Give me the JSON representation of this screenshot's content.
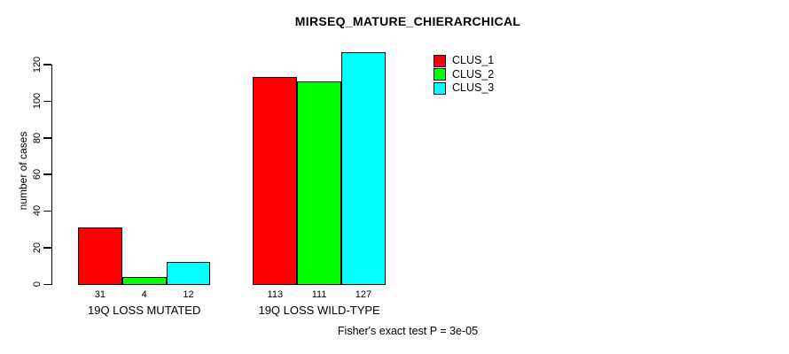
{
  "chart_data": {
    "type": "bar",
    "title": "MIRSEQ_MATURE_CHIERARCHICAL",
    "xlabel": "",
    "ylabel": "number of cases",
    "categories": [
      "19Q LOSS MUTATED",
      "19Q LOSS WILD-TYPE"
    ],
    "series": [
      {
        "name": "CLUS_1",
        "color": "#FF0000",
        "values": [
          31,
          113
        ]
      },
      {
        "name": "CLUS_2",
        "color": "#00FF00",
        "values": [
          4,
          111
        ]
      },
      {
        "name": "CLUS_3",
        "color": "#00FFFF",
        "values": [
          12,
          127
        ]
      }
    ],
    "yticks": [
      0,
      20,
      40,
      60,
      80,
      100,
      120
    ],
    "ylim": [
      0,
      120
    ],
    "bar_value_labels": true,
    "grid": false,
    "legend_position": "top-right",
    "annotation": "Fisher's exact test P = 3e-05"
  },
  "colors": {
    "background": "#FFFFFF",
    "axis": "#000000",
    "text": "#000000"
  }
}
